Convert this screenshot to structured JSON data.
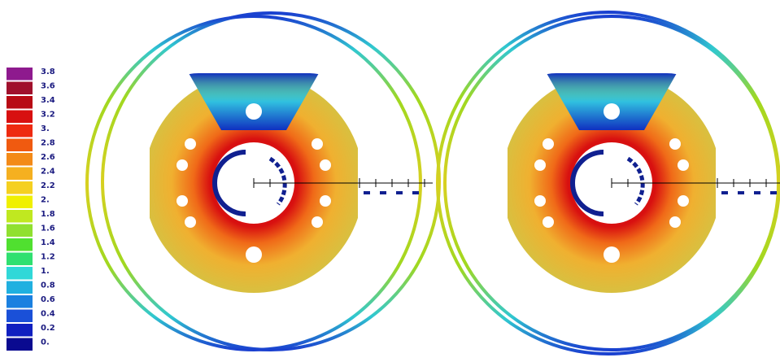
{
  "legend": {
    "entries": [
      {
        "label": "3.8",
        "color": "#8e1a8e"
      },
      {
        "label": "3.6",
        "color": "#a0102c"
      },
      {
        "label": "3.4",
        "color": "#b80a14"
      },
      {
        "label": "3.2",
        "color": "#d81010"
      },
      {
        "label": "3.",
        "color": "#ee2a10"
      },
      {
        "label": "2.8",
        "color": "#f05a10"
      },
      {
        "label": "2.6",
        "color": "#f38a18"
      },
      {
        "label": "2.4",
        "color": "#f5b020"
      },
      {
        "label": "2.2",
        "color": "#f5d020"
      },
      {
        "label": "2.",
        "color": "#f0f000"
      },
      {
        "label": "1.8",
        "color": "#c0e820"
      },
      {
        "label": "1.6",
        "color": "#90e030"
      },
      {
        "label": "1.4",
        "color": "#50e030"
      },
      {
        "label": "1.2",
        "color": "#30e070"
      },
      {
        "label": "1.",
        "color": "#30d8d8"
      },
      {
        "label": "0.8",
        "color": "#20b0e0"
      },
      {
        "label": "0.6",
        "color": "#1a80e0"
      },
      {
        "label": "0.4",
        "color": "#1a50d8"
      },
      {
        "label": "0.2",
        "color": "#1020c0"
      },
      {
        "label": "0.",
        "color": "#0a0a90"
      }
    ]
  }
}
